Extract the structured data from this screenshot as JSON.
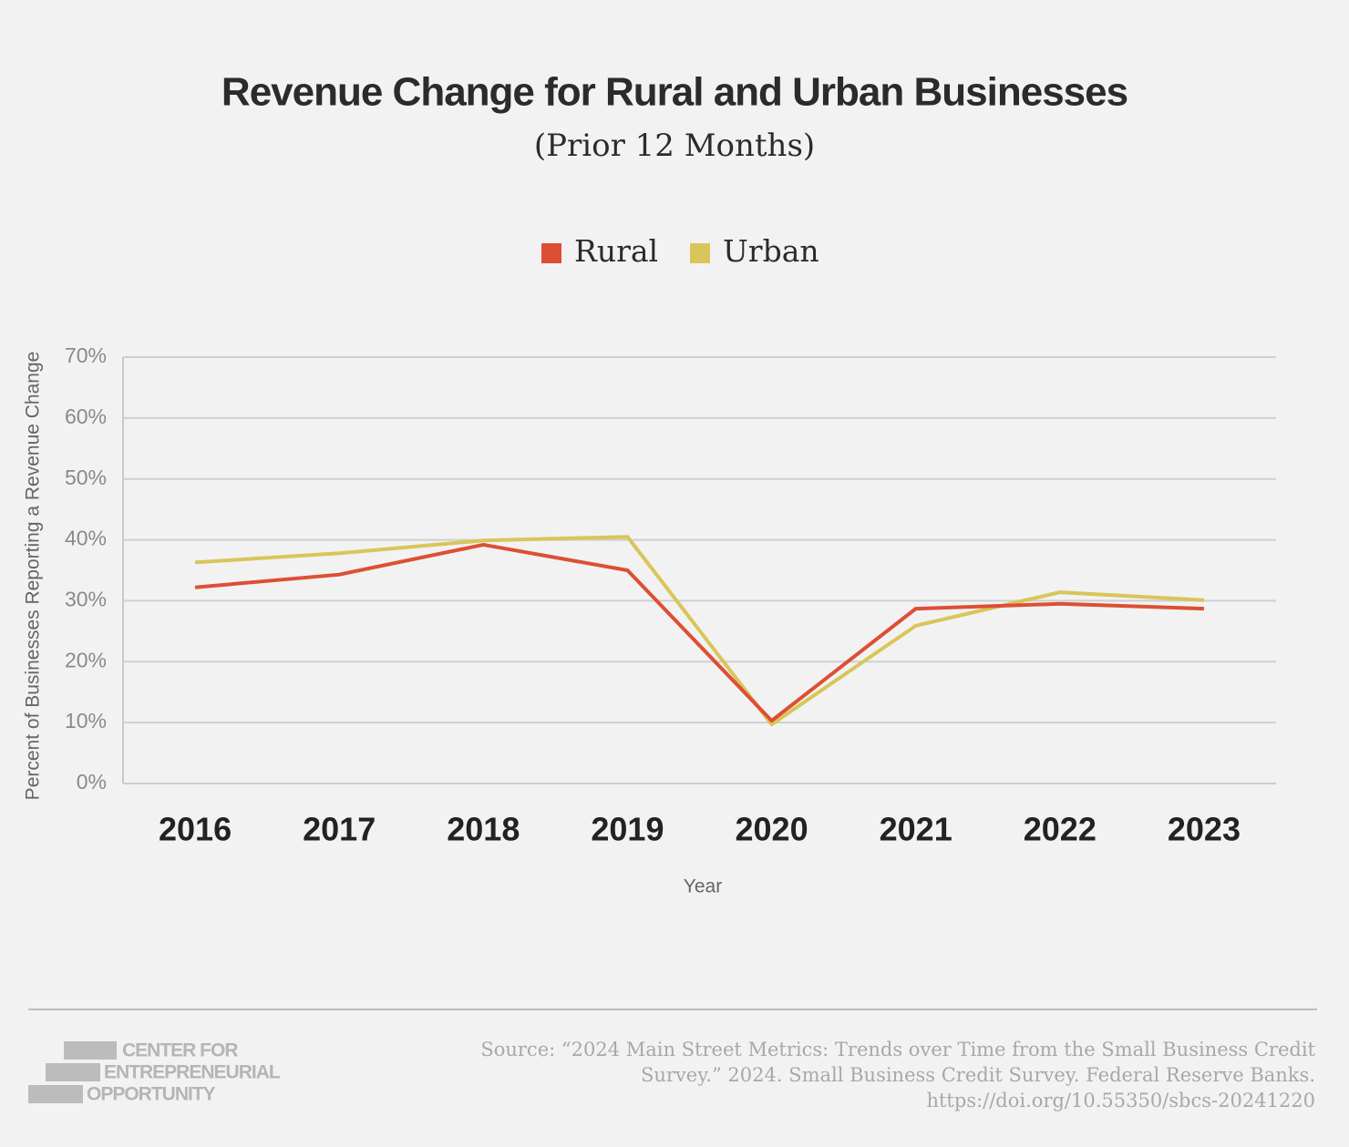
{
  "chart_data": {
    "type": "line",
    "title": "Revenue Change for Rural and Urban Businesses",
    "subtitle": "(Prior 12 Months)",
    "x_label": "Year",
    "y_label": "Percent of Businesses Reporting a Revenue Change",
    "categories": [
      "2016",
      "2017",
      "2018",
      "2019",
      "2020",
      "2021",
      "2022",
      "2023"
    ],
    "series": [
      {
        "name": "Rural",
        "color": "#dd4f35",
        "values": [
          32.2,
          34.3,
          39.2,
          35.0,
          10.3,
          28.7,
          29.5,
          28.7
        ]
      },
      {
        "name": "Urban",
        "color": "#d9c559",
        "values": [
          36.3,
          37.8,
          39.9,
          40.5,
          9.7,
          25.9,
          31.4,
          30.1
        ]
      }
    ],
    "ylim": [
      0,
      70
    ],
    "yticks": [
      {
        "value": 0,
        "label": "0%"
      },
      {
        "value": 10,
        "label": "10%"
      },
      {
        "value": 20,
        "label": "20%"
      },
      {
        "value": 30,
        "label": "30%"
      },
      {
        "value": 40,
        "label": "40%"
      },
      {
        "value": 50,
        "label": "50%"
      },
      {
        "value": 60,
        "label": "60%"
      },
      {
        "value": 70,
        "label": "70%"
      }
    ],
    "grid": true,
    "legend": "top"
  },
  "footer": {
    "logo": [
      "CENTER FOR",
      "ENTREPRENEURIAL",
      "OPPORTUNITY"
    ],
    "source": "Source: “2024 Main Street Metrics: Trends over Time from the Small Business Credit Survey.” 2024. Small Business Credit Survey. Federal Reserve Banks. https://doi.org/10.55350/sbcs-20241220"
  }
}
